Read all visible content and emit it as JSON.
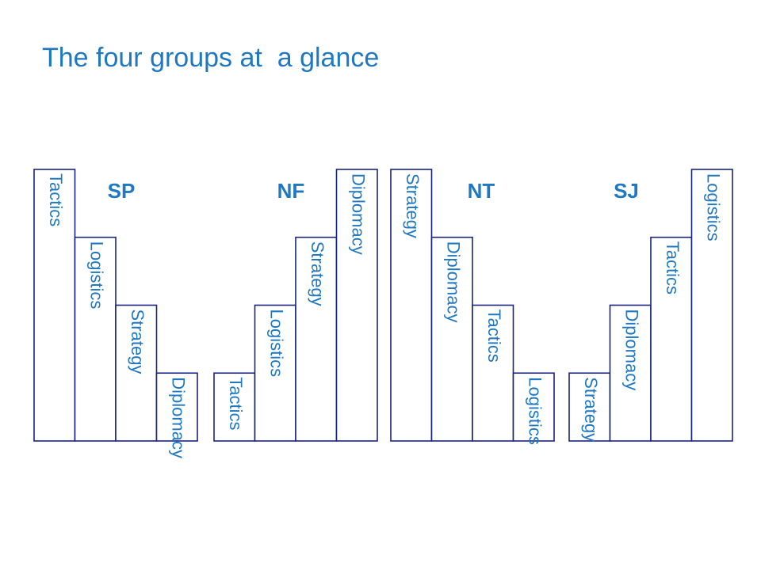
{
  "page": {
    "title": "The four groups at  a glance"
  },
  "chart_data": [
    {
      "type": "bar",
      "title": "SP",
      "categories": [
        "Tactics",
        "Logistics",
        "Strategy",
        "Diplomacy"
      ],
      "values": [
        4,
        3,
        2,
        1
      ]
    },
    {
      "type": "bar",
      "title": "NF",
      "categories": [
        "Tactics",
        "Logistics",
        "Strategy",
        "Diplomacy"
      ],
      "values": [
        1,
        2,
        3,
        4
      ]
    },
    {
      "type": "bar",
      "title": "NT",
      "categories": [
        "Strategy",
        "Diplomacy",
        "Tactics",
        "Logistics"
      ],
      "values": [
        4,
        3,
        2,
        1
      ]
    },
    {
      "type": "bar",
      "title": "SJ",
      "categories": [
        "Strategy",
        "Diplomacy",
        "Tactics",
        "Logistics"
      ],
      "values": [
        1,
        2,
        3,
        4
      ]
    }
  ]
}
